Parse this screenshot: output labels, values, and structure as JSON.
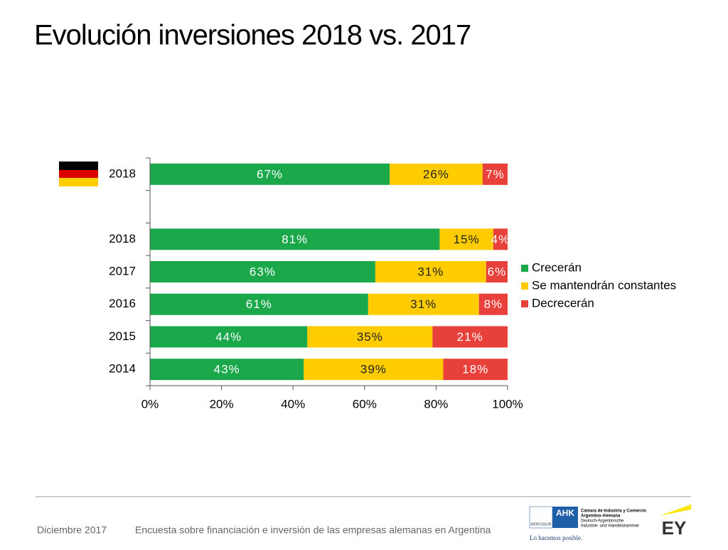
{
  "chart_data": {
    "type": "stacked-bar-horizontal",
    "title": "Evolución inversiones 2018 vs. 2017",
    "categories": [
      "2018",
      null,
      "2018",
      "2017",
      "2016",
      "2015",
      "2014"
    ],
    "series": [
      {
        "name": "Crecerán",
        "color": "#1aa84b",
        "values": [
          67,
          null,
          81,
          63,
          61,
          44,
          43
        ],
        "value_labels": [
          "67%",
          null,
          "81%",
          "63%",
          "61%",
          "44%",
          "43%"
        ]
      },
      {
        "name": "Se mantendrán constantes",
        "color": "#ffcc00",
        "values": [
          26,
          null,
          15,
          31,
          31,
          35,
          39
        ],
        "value_labels": [
          "26%",
          null,
          "15%",
          "31%",
          "31%",
          "35%",
          "39%"
        ]
      },
      {
        "name": "Decrecerán",
        "color": "#e8403a",
        "values": [
          7,
          null,
          4,
          6,
          8,
          21,
          18
        ],
        "value_labels": [
          "7%",
          null,
          "4%",
          "6%",
          "8%",
          "21%",
          "18%"
        ]
      }
    ],
    "xlim": [
      0,
      100
    ],
    "xticks": [
      {
        "value": 0,
        "label": "0%"
      },
      {
        "value": 20,
        "label": "20%"
      },
      {
        "value": 40,
        "label": "40%"
      },
      {
        "value": 60,
        "label": "60%"
      },
      {
        "value": 80,
        "label": "80%"
      },
      {
        "value": 100,
        "label": "100%"
      }
    ],
    "legend": "right"
  },
  "footer": {
    "date": "Diciembre 2017",
    "source": "Encuesta sobre financiación e inversión de las empresas alemanas en Argentina",
    "ahk": "AHK",
    "ahk_line1": "Cámara de Industria y Comercio",
    "ahk_line2": "Argentino-Alemana",
    "ahk_line3": "Deutsch-Argentinische",
    "ahk_line4": "Industrie- und Handelskammer",
    "mercosur": "MERCOSUR",
    "slogan": "Lo hacemos posible.",
    "ey": "EY"
  }
}
